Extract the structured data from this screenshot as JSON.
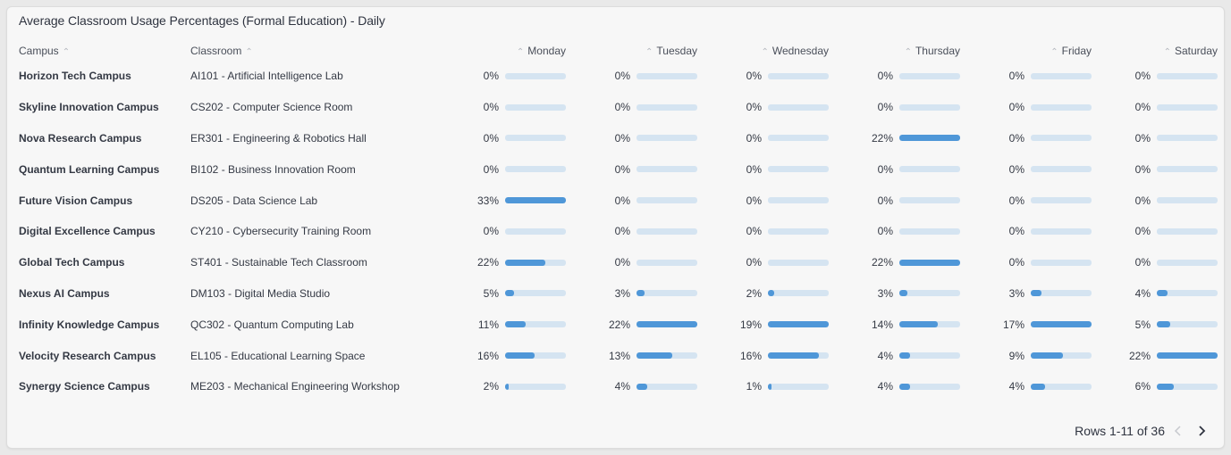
{
  "title": "Average Classroom Usage Percentages (Formal Education) - Daily",
  "columns": {
    "campus": "Campus",
    "classroom": "Classroom",
    "days": [
      "Monday",
      "Tuesday",
      "Wednesday",
      "Thursday",
      "Friday",
      "Saturday"
    ]
  },
  "rows": [
    {
      "campus": "Horizon Tech Campus",
      "classroom": "AI101 - Artificial Intelligence Lab",
      "values": [
        0,
        0,
        0,
        0,
        0,
        0
      ],
      "labels": [
        "0%",
        "0%",
        "0%",
        "0%",
        "0%",
        "0%"
      ]
    },
    {
      "campus": "Skyline Innovation Campus",
      "classroom": "CS202 - Computer Science Room",
      "values": [
        0,
        0,
        0,
        0,
        0,
        0
      ],
      "labels": [
        "0%",
        "0%",
        "0%",
        "0%",
        "0%",
        "0%"
      ]
    },
    {
      "campus": "Nova Research Campus",
      "classroom": "ER301 - Engineering & Robotics Hall",
      "values": [
        0,
        0,
        0,
        22,
        0,
        0
      ],
      "labels": [
        "0%",
        "0%",
        "0%",
        "22%",
        "0%",
        "0%"
      ]
    },
    {
      "campus": "Quantum Learning Campus",
      "classroom": "BI102 - Business Innovation Room",
      "values": [
        0,
        0,
        0,
        0,
        0,
        0
      ],
      "labels": [
        "0%",
        "0%",
        "0%",
        "0%",
        "0%",
        "0%"
      ]
    },
    {
      "campus": "Future Vision Campus",
      "classroom": "DS205 - Data Science Lab",
      "values": [
        33,
        0,
        0,
        0,
        0,
        0
      ],
      "labels": [
        "33%",
        "0%",
        "0%",
        "0%",
        "0%",
        "0%"
      ]
    },
    {
      "campus": "Digital Excellence Campus",
      "classroom": "CY210 - Cybersecurity Training Room",
      "values": [
        0,
        0,
        0,
        0,
        0,
        0
      ],
      "labels": [
        "0%",
        "0%",
        "0%",
        "0%",
        "0%",
        "0%"
      ]
    },
    {
      "campus": "Global Tech Campus",
      "classroom": "ST401 - Sustainable Tech Classroom",
      "values": [
        22,
        0,
        0,
        22,
        0,
        0
      ],
      "labels": [
        "22%",
        "0%",
        "0%",
        "22%",
        "0%",
        "0%"
      ]
    },
    {
      "campus": "Nexus AI Campus",
      "classroom": "DM103 - Digital Media Studio",
      "values": [
        5,
        3,
        2,
        3,
        3,
        4
      ],
      "labels": [
        "5%",
        "3%",
        "2%",
        "3%",
        "3%",
        "4%"
      ]
    },
    {
      "campus": "Infinity Knowledge Campus",
      "classroom": "QC302 - Quantum Computing Lab",
      "values": [
        11,
        22,
        19,
        14,
        17,
        5
      ],
      "labels": [
        "11%",
        "22%",
        "19%",
        "14%",
        "17%",
        "5%"
      ]
    },
    {
      "campus": "Velocity Research Campus",
      "classroom": "EL105 - Educational Learning Space",
      "values": [
        16,
        13,
        16,
        4,
        9,
        22
      ],
      "labels": [
        "16%",
        "13%",
        "16%",
        "4%",
        "9%",
        "22%"
      ]
    },
    {
      "campus": "Synergy Science Campus",
      "classroom": "ME203 - Mechanical Engineering Workshop",
      "values": [
        2,
        4,
        1,
        4,
        4,
        6
      ],
      "labels": [
        "2%",
        "4%",
        "1%",
        "4%",
        "4%",
        "6%"
      ]
    }
  ],
  "bar_max_by_column": [
    33,
    22,
    19,
    22,
    17,
    22
  ],
  "pagination": {
    "label": "Rows 1-11 of 36"
  },
  "icons": {
    "sort": "sort-arrow-up-icon",
    "prev": "chevron-left-icon",
    "next": "chevron-right-icon"
  },
  "colors": {
    "bar_track": "#d5e4f1",
    "bar_fill": "#4f97d8"
  }
}
